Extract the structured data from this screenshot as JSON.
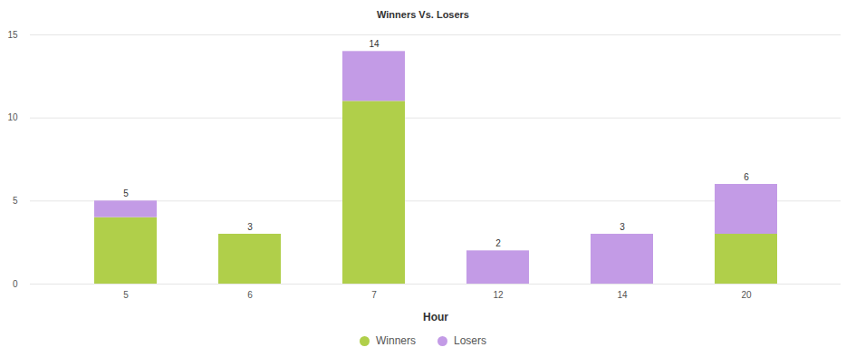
{
  "chart_data": {
    "type": "bar",
    "title": "Winners Vs. Losers",
    "x_label": "Hour",
    "categories": [
      5,
      6,
      7,
      12,
      14,
      20
    ],
    "series": [
      {
        "name": "Winners",
        "color": "#b0cf4a",
        "values": [
          4,
          3,
          11,
          0,
          0,
          3
        ]
      },
      {
        "name": "Losers",
        "color": "#c39be6",
        "values": [
          1,
          0,
          3,
          2,
          3,
          3
        ]
      }
    ],
    "totals": [
      5,
      3,
      14,
      2,
      3,
      6
    ],
    "stacked": true,
    "ylim": [
      0,
      15
    ],
    "yticks": [
      0,
      5,
      10,
      15
    ],
    "grid": true,
    "legend": "bottom"
  }
}
